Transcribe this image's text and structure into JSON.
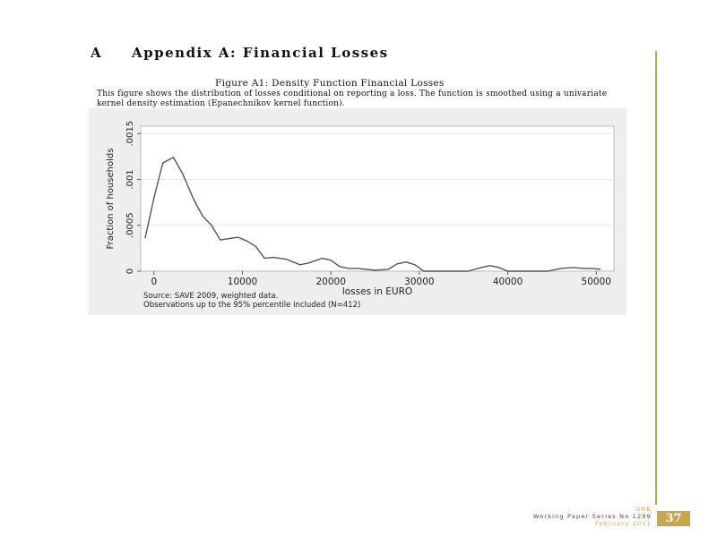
{
  "section": {
    "number": "A",
    "title": "Appendix A: Financial Losses"
  },
  "figure": {
    "title": "Figure A1: Density Function Financial Losses",
    "caption": "This figure shows the distribution of losses conditional on reporting a loss. The function is smoothed using a univariate kernel density estimation (Epanechnikov kernel function).",
    "note_lines": [
      "Source: SAVE 2009, weighted data.",
      "Observations up to the 95% percentile included (N=412)"
    ]
  },
  "chart_data": {
    "type": "line",
    "title": "",
    "xlabel": "losses in EURO",
    "ylabel": "Fraction of households",
    "xlim": [
      -1500,
      52000
    ],
    "ylim": [
      0,
      0.00158
    ],
    "x_ticks": [
      0,
      10000,
      20000,
      30000,
      40000,
      50000
    ],
    "x_tick_labels": [
      "0",
      "10000",
      "20000",
      "30000",
      "40000",
      "50000"
    ],
    "y_ticks": [
      0,
      0.0005,
      0.001,
      0.0015
    ],
    "y_tick_labels": [
      "0",
      ".0005",
      ".001",
      ".0015"
    ],
    "grid": "horizontal",
    "line_color": "#555555",
    "background": "#ffffff",
    "series": [
      {
        "x": [
          -1000,
          0,
          1000,
          2200,
          3200,
          4500,
          5500,
          6500,
          7500,
          9500,
          10500,
          11500,
          12500,
          13500,
          15000,
          16500,
          17500,
          19000,
          20000,
          21000,
          22000,
          23000,
          25000,
          26500,
          27500,
          28500,
          29500,
          30500,
          31500,
          32500,
          34000,
          35500,
          37000,
          38000,
          39000,
          40000,
          41000,
          42000,
          43000,
          44500,
          46000,
          47500,
          48500,
          49500,
          50500
        ],
        "y": [
          0.00036,
          0.0008,
          0.00118,
          0.00124,
          0.00107,
          0.00078,
          0.0006,
          0.0005,
          0.00034,
          0.00037,
          0.00033,
          0.00027,
          0.00014,
          0.00015,
          0.00013,
          7e-05,
          9e-05,
          0.00014,
          0.00012,
          5e-05,
          3e-05,
          3e-05,
          1e-05,
          2e-05,
          8e-05,
          0.0001,
          7e-05,
          0.0,
          0.0,
          0.0,
          0.0,
          0.0,
          4e-05,
          6e-05,
          4e-05,
          0.0,
          0.0,
          0.0,
          0.0,
          0.0,
          3e-05,
          4e-05,
          3e-05,
          3e-05,
          2e-05
        ]
      }
    ]
  },
  "footer": {
    "institution": "DNB",
    "series": "Working Paper Series No 1299",
    "date": "February 2011",
    "page_number": "37"
  },
  "colors": {
    "accent": "#c9a64a",
    "panel_background": "#eeeeee"
  }
}
